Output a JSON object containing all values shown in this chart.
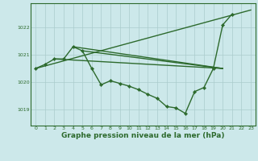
{
  "bg_color": "#cce8ea",
  "grid_color": "#aacccc",
  "line_color": "#2d6a2d",
  "marker_color": "#2d6a2d",
  "xlabel": "Graphe pression niveau de la mer (hPa)",
  "xlabel_fontsize": 6.5,
  "ylim": [
    1018.4,
    1022.9
  ],
  "xlim": [
    -0.5,
    23.5
  ],
  "yticks": [
    1019,
    1020,
    1021,
    1022
  ],
  "xticks": [
    0,
    1,
    2,
    3,
    4,
    5,
    6,
    7,
    8,
    9,
    10,
    11,
    12,
    13,
    14,
    15,
    16,
    17,
    18,
    19,
    20,
    21,
    22,
    23
  ],
  "series": [
    {
      "x": [
        0,
        1,
        2,
        3,
        4,
        5,
        6,
        7,
        8,
        9,
        10,
        11,
        12,
        13,
        14,
        15,
        16,
        17,
        18,
        19,
        20,
        21,
        22,
        23
      ],
      "y": [
        1020.5,
        1020.65,
        1020.85,
        1020.85,
        1021.3,
        1021.15,
        1020.5,
        1019.9,
        1020.05,
        1019.95,
        1019.85,
        1019.72,
        1019.55,
        1019.4,
        1019.1,
        1019.05,
        1018.85,
        1019.65,
        1019.8,
        1020.5,
        1022.1,
        1022.5,
        null,
        null
      ],
      "marker": "D",
      "markersize": 2.2,
      "linewidth": 1.0
    },
    {
      "x": [
        0,
        23
      ],
      "y": [
        1020.5,
        1022.65
      ],
      "marker": null,
      "markersize": 0,
      "linewidth": 1.0
    },
    {
      "x": [
        2,
        20
      ],
      "y": [
        1020.85,
        1020.5
      ],
      "marker": null,
      "markersize": 0,
      "linewidth": 1.0
    },
    {
      "x": [
        4,
        20
      ],
      "y": [
        1021.3,
        1020.5
      ],
      "marker": null,
      "markersize": 0,
      "linewidth": 1.0
    },
    {
      "x": [
        5,
        20
      ],
      "y": [
        1021.15,
        1020.5
      ],
      "marker": null,
      "markersize": 0,
      "linewidth": 1.0
    }
  ]
}
